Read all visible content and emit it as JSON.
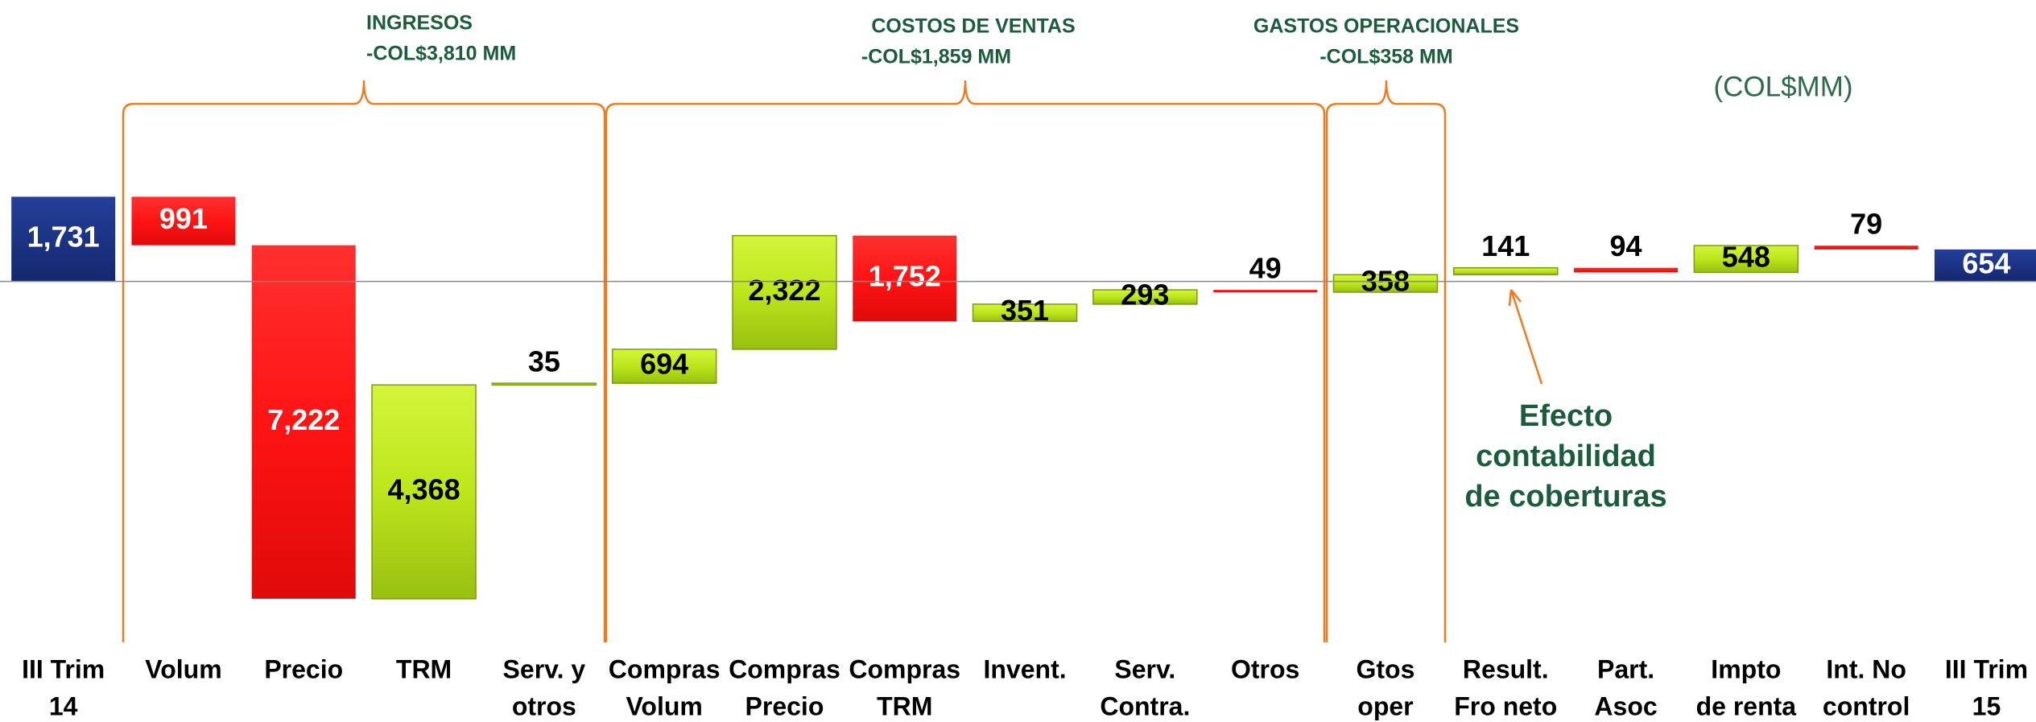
{
  "chart_data": {
    "type": "waterfall",
    "unit_label": "(COL$MM)",
    "categories": [
      [
        "III Trim",
        "14"
      ],
      [
        "Volum"
      ],
      [
        "Precio"
      ],
      [
        "TRM"
      ],
      [
        "Serv. y",
        "otros"
      ],
      [
        "Compras",
        "Volum"
      ],
      [
        "Compras",
        "Precio"
      ],
      [
        "Compras",
        "TRM"
      ],
      [
        "Invent."
      ],
      [
        "Serv.",
        "Contra."
      ],
      [
        "Otros"
      ],
      [
        "Gtos",
        "oper"
      ],
      [
        "Result.",
        "Fro neto"
      ],
      [
        "Part.",
        "Asoc"
      ],
      [
        "Impto",
        "de renta"
      ],
      [
        "Int. No",
        "control"
      ],
      [
        "III Trim",
        "15"
      ]
    ],
    "values": [
      1731,
      -991,
      -7222,
      4368,
      35,
      694,
      2322,
      -1752,
      351,
      293,
      -49,
      358,
      141,
      -94,
      548,
      -79,
      654
    ],
    "value_labels": [
      "1,731",
      "991",
      "7,222",
      "4,368",
      "35",
      "694",
      "2,322",
      "1,752",
      "351",
      "293",
      "49",
      "358",
      "141",
      "94",
      "548",
      "79",
      "654"
    ],
    "colors": {
      "total": "#1a3488",
      "increase": "#bde61c",
      "decrease": "#ff1414"
    },
    "ylim": [
      -9000,
      5750
    ],
    "groups": [
      [
        "INGRESOS",
        "-COL$3,810 MM"
      ],
      [
        "COSTOS DE VENTAS",
        "-COL$1,859 MM"
      ],
      [
        "GASTOS OPERACIONALES",
        "-COL$358 MM"
      ]
    ],
    "annotation": [
      "Efecto",
      "contabilidad",
      "de coberturas"
    ]
  }
}
